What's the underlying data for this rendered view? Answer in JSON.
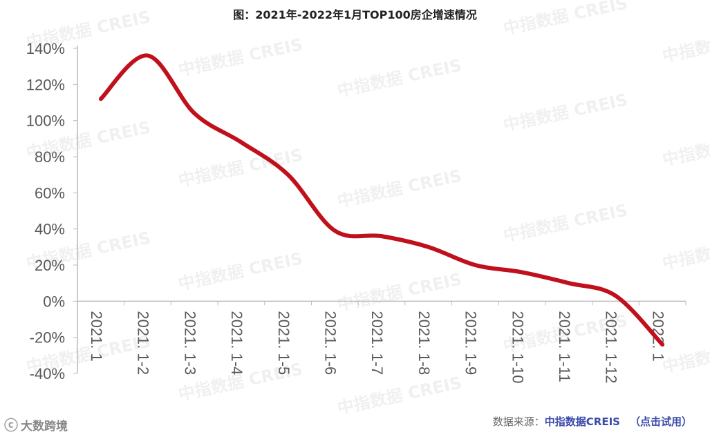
{
  "title": "图：2021年-2022年1月TOP100房企增速情况",
  "watermark_text": "中指数据 CREIS",
  "footer": {
    "brand": "大数跨境",
    "source_label": "数据来源：",
    "source_name": "中指数据CREIS",
    "trial": "（点击试用）"
  },
  "colors": {
    "line": "#c0101c",
    "axis": "#bbbbbb",
    "text": "#595959"
  },
  "chart_data": {
    "type": "line",
    "title": "图：2021年-2022年1月TOP100房企增速情况",
    "categories": [
      "2021. 1",
      "2021. 1-2",
      "2021. 1-3",
      "2021. 1-4",
      "2021. 1-5",
      "2021. 1-6",
      "2021. 1-7",
      "2021. 1-8",
      "2021. 1-9",
      "2021. 1-10",
      "2021. 1-11",
      "2021. 1-12",
      "2022. 1"
    ],
    "series": [
      {
        "values": [
          112,
          136,
          104,
          88,
          70,
          39,
          36,
          30,
          20,
          16,
          10,
          3,
          -24
        ]
      }
    ],
    "ylim": [
      -40,
      140
    ],
    "yticks": [
      -40,
      -20,
      0,
      20,
      40,
      60,
      80,
      100,
      120,
      140
    ],
    "ytick_labels": [
      "-40%",
      "-20%",
      "0%",
      "20%",
      "40%",
      "60%",
      "80%",
      "100%",
      "120%",
      "140%"
    ],
    "xlabel": "",
    "ylabel": "",
    "grid": false,
    "legend": "none"
  }
}
